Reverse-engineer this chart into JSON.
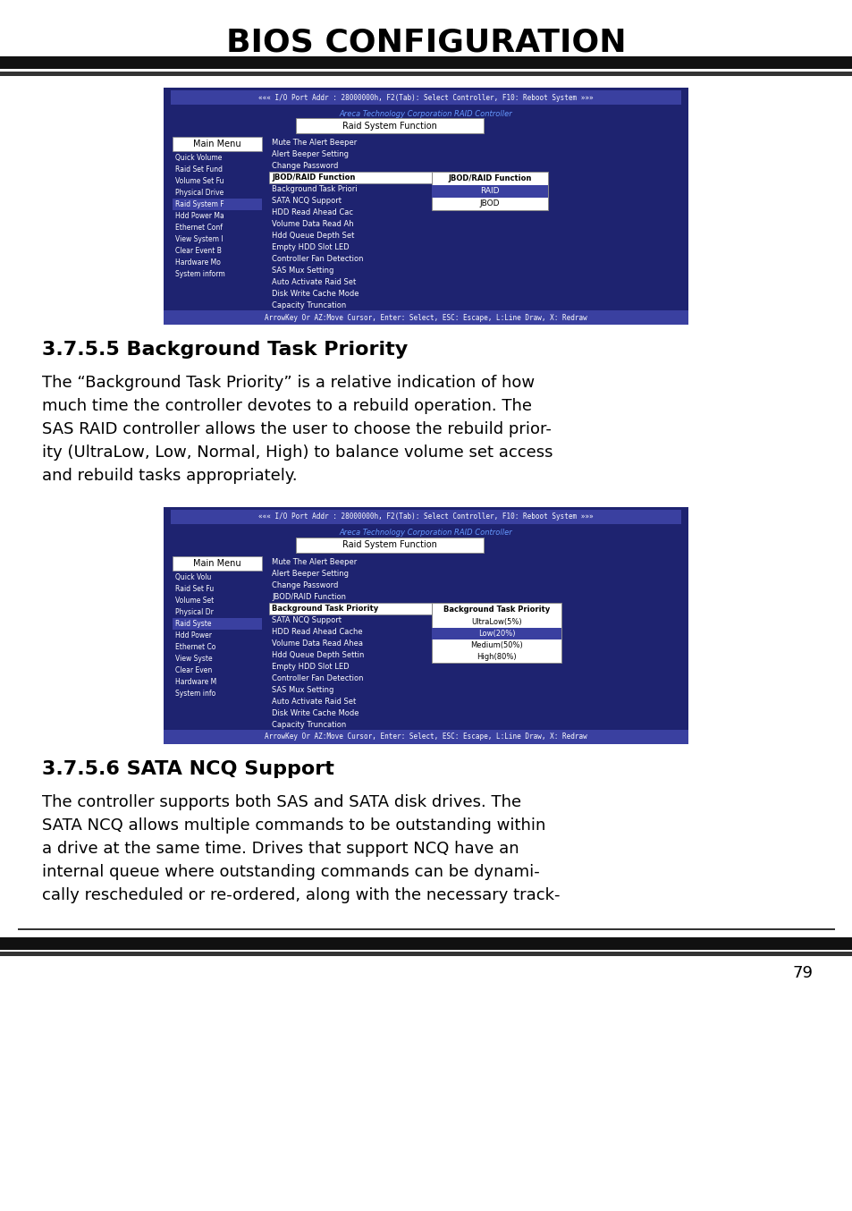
{
  "title": "BIOS CONFIGURATION",
  "page_number": "79",
  "bg_color": "#ffffff",
  "title_color": "#000000",
  "dark_blue": "#1e2370",
  "header_bar_color": "#3a40a0",
  "white": "#ffffff",
  "arrow_bar_color": "#3a40a0",
  "section_heading1": "3.7.5.5 Background Task Priority",
  "section_heading2": "3.7.5.6 SATA NCQ Support",
  "paragraph1_lines": [
    "The “Background Task Priority” is a relative indication of how",
    "much time the controller devotes to a rebuild operation. The",
    "SAS RAID controller allows the user to choose the rebuild prior-",
    "ity (UltraLow, Low, Normal, High) to balance volume set access",
    "and rebuild tasks appropriately."
  ],
  "paragraph2_lines": [
    "The controller supports both SAS and SATA disk drives. The",
    "SATA NCQ allows multiple commands to be outstanding within",
    "a drive at the same time. Drives that support NCQ have an",
    "internal queue where outstanding commands can be dynami-",
    "cally rescheduled or re-ordered, along with the necessary track-"
  ],
  "io_bar_text": "««« I/O Port Addr : 28000000h, F2(Tab): Select Controller, F10: Reboot System »»»",
  "areca_text": "Areca Technology Corporation RAID Controller",
  "arrow_bar_text": "ArrowKey Or AZ:Move Cursor, Enter: Select, ESC: Escape, L:Line Draw, X: Redraw",
  "raid_system_function": "Raid System Function",
  "main_menu_label": "Main Menu",
  "main_menu_items1": [
    "Quick Volume",
    "Raid Set Fund",
    "Volume Set Fu",
    "Physical Drive",
    "Raid System F",
    "Hdd Power Ma",
    "Ethernet Conf",
    "View System I",
    "Clear Event B",
    "Hardware Mo",
    "System inform"
  ],
  "menu_items1": [
    "Mute The Alert Beeper",
    "Alert Beeper Setting",
    "Change Password",
    "JBOD/RAID Function",
    "Background Task Priori",
    "SATA NCQ Support",
    "HDD Read Ahead Cac",
    "Volume Data Read Ah",
    "Hdd Queue Depth Set",
    "Empty HDD Slot LED",
    "Controller Fan Detection",
    "SAS Mux Setting",
    "Auto Activate Raid Set",
    "Disk Write Cache Mode",
    "Capacity Truncation"
  ],
  "jbod_submenu_title": "JBOD/RAID Function",
  "jbod_items": [
    "RAID",
    "JBOD"
  ],
  "main_menu_items2": [
    "Quick Volu",
    "Raid Set Fu",
    "Volume Set",
    "Physical Dr",
    "Raid Syste",
    "Hdd Power",
    "Ethernet Co",
    "View Syste",
    "Clear Even",
    "Hardware M",
    "System info"
  ],
  "menu_items2": [
    "Mute The Alert Beeper",
    "Alert Beeper Setting",
    "Change Password",
    "JBOD/RAID Function",
    "Background Task Priority",
    "SATA NCQ Support",
    "HDD Read Ahead Cache",
    "Volume Data Read Ahea",
    "Hdd Queue Depth Settin",
    "Empty HDD Slot LED",
    "Controller Fan Detection",
    "SAS Mux Setting",
    "Auto Activate Raid Set",
    "Disk Write Cache Mode",
    "Capacity Truncation"
  ],
  "bg_priority_title": "Background Task Priority",
  "bg_priority_items": [
    "UltraLow(5%)",
    "Low(20%)",
    "Medium(50%)",
    "High(80%)"
  ]
}
